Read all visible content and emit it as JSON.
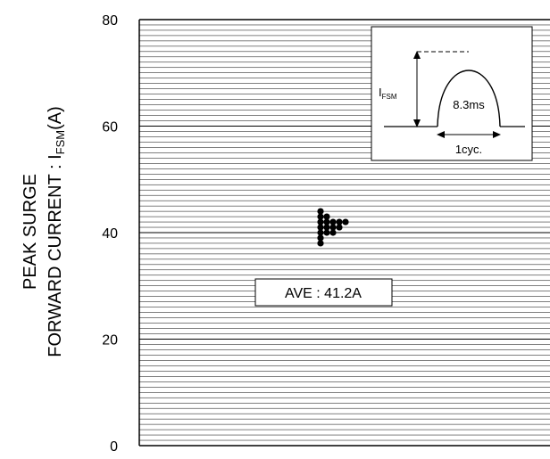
{
  "chart_data": {
    "type": "scatter",
    "ylabel_line1": "PEAK SURGE",
    "ylabel_line2_main": "FORWARD CURRENT : I",
    "ylabel_line2_sub": "FSM",
    "ylabel_line2_unit": "(A)",
    "ylim": [
      0,
      80
    ],
    "yticks": [
      0,
      20,
      40,
      60,
      80
    ],
    "ytick_labels": [
      "0",
      "20",
      "40",
      "60",
      "80"
    ],
    "grid": "horizontal, minor every 1 A, major every 20 A",
    "points": [
      {
        "x": 0,
        "y": 44
      },
      {
        "x": 0,
        "y": 43
      },
      {
        "x": 1,
        "y": 43
      },
      {
        "x": 0,
        "y": 42
      },
      {
        "x": 1,
        "y": 42
      },
      {
        "x": 2,
        "y": 42
      },
      {
        "x": 3,
        "y": 42
      },
      {
        "x": 4,
        "y": 42
      },
      {
        "x": 0,
        "y": 41
      },
      {
        "x": 1,
        "y": 41
      },
      {
        "x": 2,
        "y": 41
      },
      {
        "x": 3,
        "y": 41
      },
      {
        "x": 0,
        "y": 40
      },
      {
        "x": 1,
        "y": 40
      },
      {
        "x": 2,
        "y": 40
      },
      {
        "x": 0,
        "y": 39
      },
      {
        "x": 0,
        "y": 38
      }
    ],
    "annotation": "AVE : 41.2A",
    "inset": {
      "ifsm_main": "I",
      "ifsm_sub": "FSM",
      "pulse_label": "8.3ms",
      "cycle_label": "1cyc."
    }
  }
}
